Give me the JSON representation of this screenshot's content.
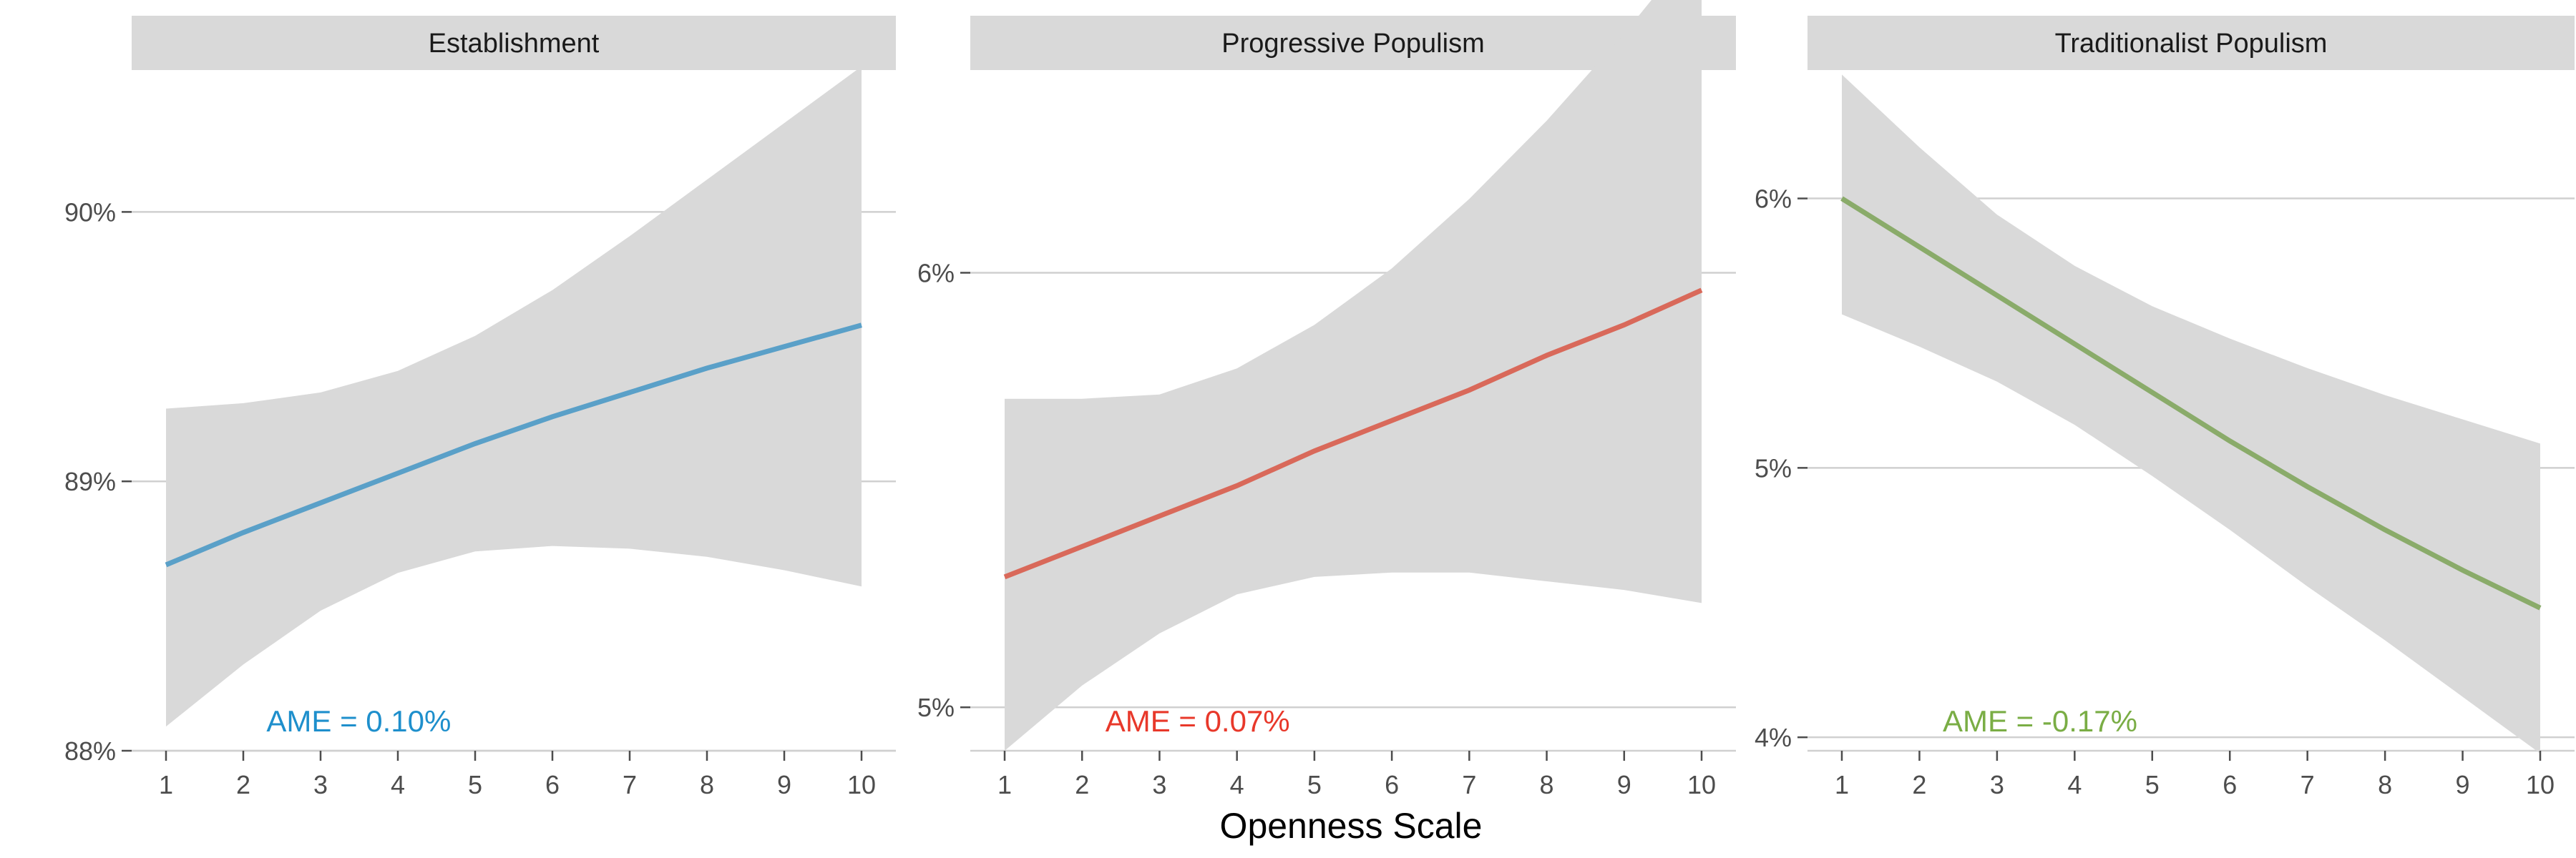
{
  "chart_data": {
    "type": "line",
    "xlabel": "Openness Scale",
    "x": [
      1,
      2,
      3,
      4,
      5,
      6,
      7,
      8,
      9,
      10
    ],
    "panels": [
      {
        "title": "Establishment",
        "color": "#5aa0c8",
        "annotation": "AME = 0.10%",
        "annotation_color": "#1e8fcc",
        "ylim": [
          88.0,
          90.5
        ],
        "yticks": [
          88,
          89,
          90
        ],
        "yticklabels": [
          "88%",
          "89%",
          "90%"
        ],
        "fit": [
          88.69,
          88.81,
          88.92,
          89.03,
          89.14,
          89.24,
          89.33,
          89.42,
          89.5,
          89.58
        ],
        "lower": [
          88.09,
          88.32,
          88.52,
          88.66,
          88.74,
          88.76,
          88.75,
          88.72,
          88.67,
          88.61
        ],
        "upper": [
          89.27,
          89.29,
          89.33,
          89.41,
          89.54,
          89.71,
          89.91,
          90.12,
          90.33,
          90.54
        ]
      },
      {
        "title": "Progressive Populism",
        "color": "#d9695a",
        "annotation": "AME = 0.07%",
        "annotation_color": "#e8382a",
        "ylim": [
          4.9,
          6.45
        ],
        "yticks": [
          5,
          6
        ],
        "yticklabels": [
          "5%",
          "6%"
        ],
        "fit": [
          5.3,
          5.37,
          5.44,
          5.51,
          5.59,
          5.66,
          5.73,
          5.81,
          5.88,
          5.96
        ],
        "lower": [
          4.9,
          5.05,
          5.17,
          5.26,
          5.3,
          5.31,
          5.31,
          5.29,
          5.27,
          5.24
        ],
        "upper": [
          5.71,
          5.71,
          5.72,
          5.78,
          5.88,
          6.01,
          6.17,
          6.35,
          6.55,
          6.77
        ]
      },
      {
        "title": "Traditionalist Populism",
        "color": "#8aab6a",
        "annotation": "AME = -0.17%",
        "annotation_color": "#7aad45",
        "ylim": [
          3.95,
          6.45
        ],
        "yticks": [
          4,
          5,
          6
        ],
        "yticklabels": [
          "4%",
          "5%",
          "6%"
        ],
        "fit": [
          6.0,
          5.82,
          5.64,
          5.46,
          5.28,
          5.1,
          4.93,
          4.77,
          4.62,
          4.48
        ],
        "lower": [
          5.57,
          5.45,
          5.32,
          5.16,
          4.97,
          4.77,
          4.56,
          4.36,
          4.15,
          3.94
        ],
        "upper": [
          6.46,
          6.19,
          5.94,
          5.75,
          5.6,
          5.48,
          5.37,
          5.27,
          5.18,
          5.09
        ]
      }
    ]
  }
}
